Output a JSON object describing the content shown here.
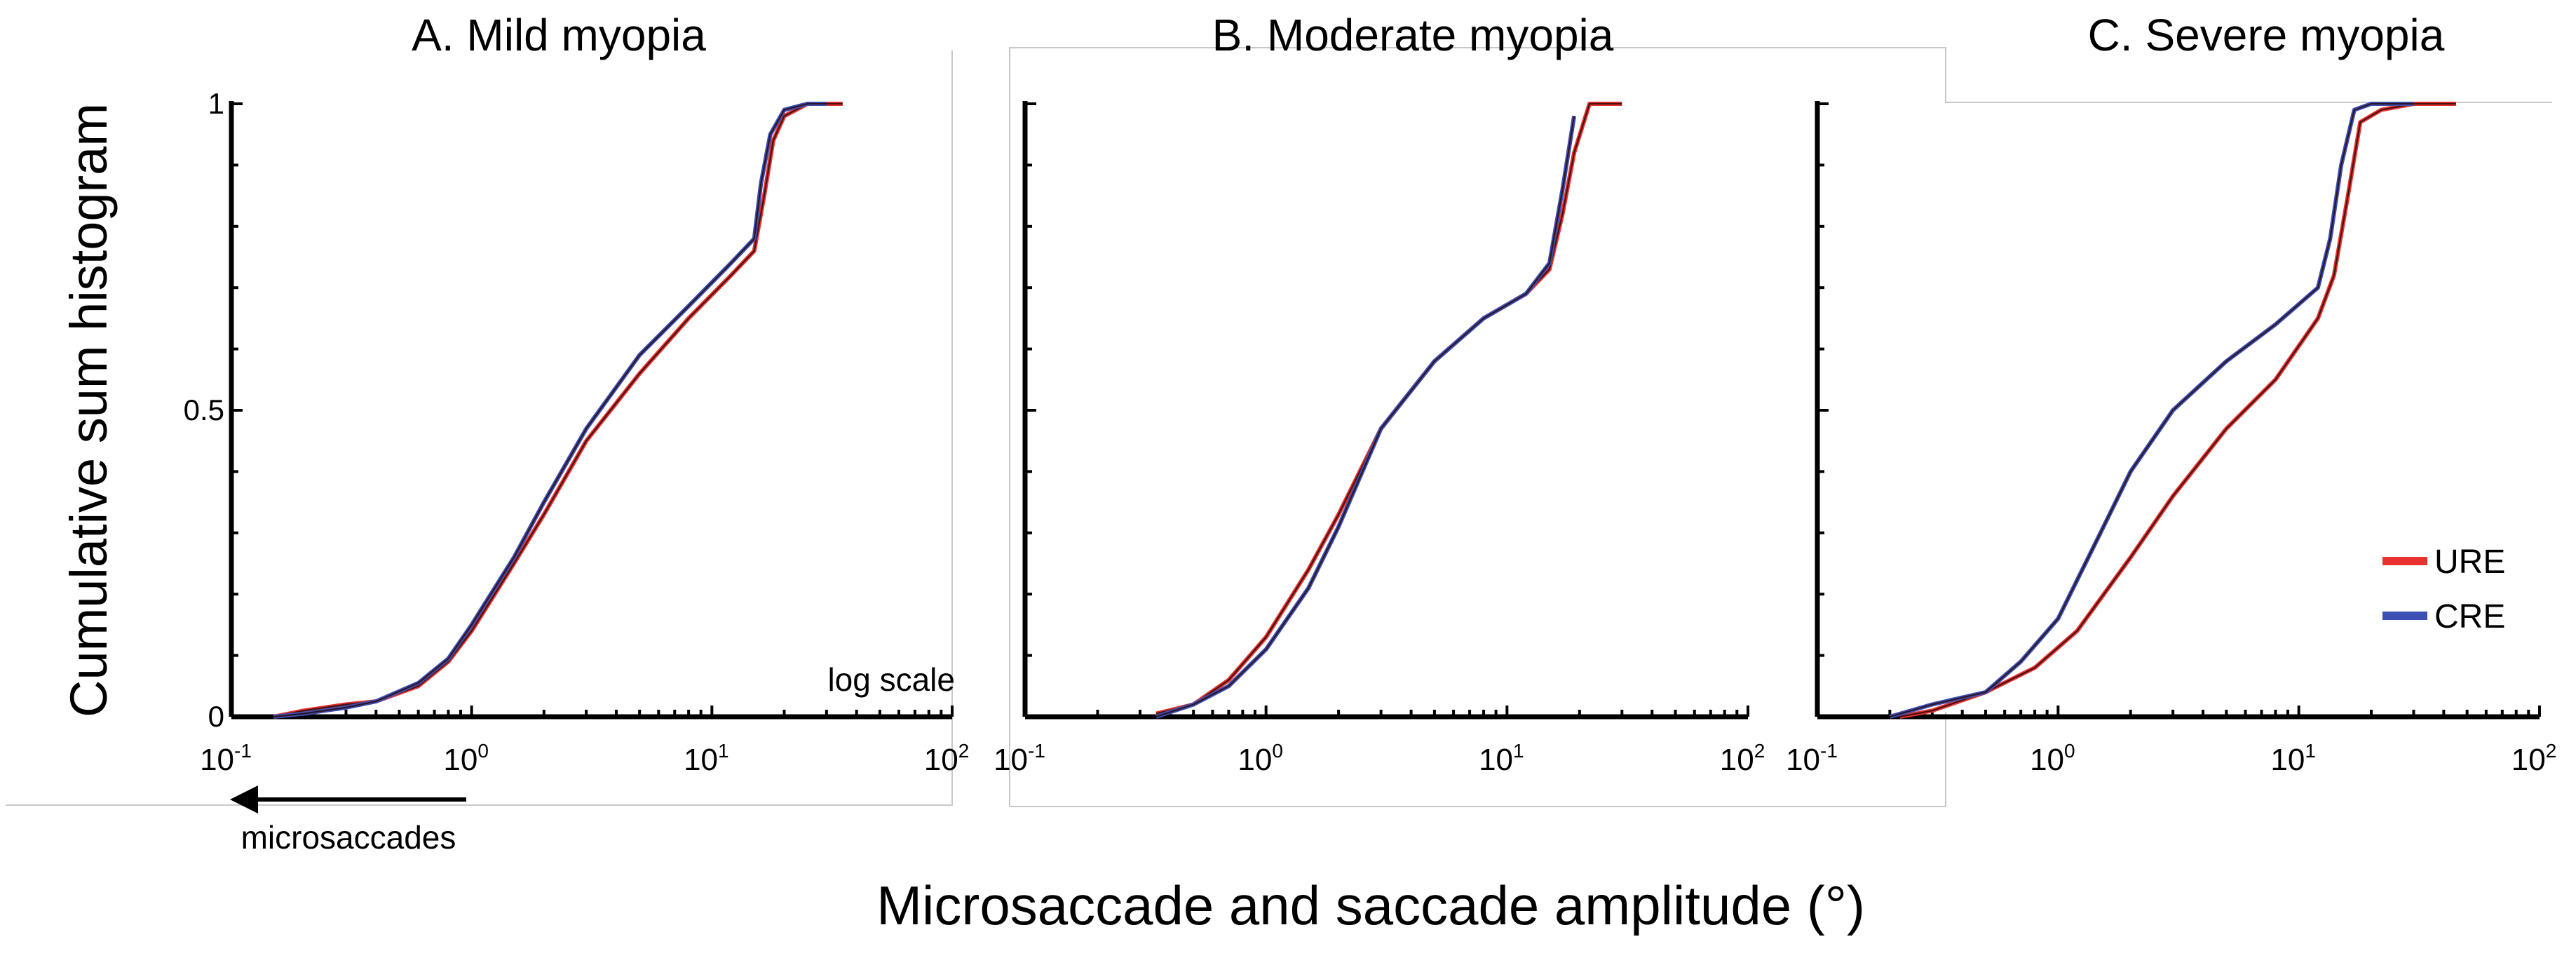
{
  "figure": {
    "ylabel": "Cumulative sum histogram",
    "xlabel": "Microsaccade and saccade amplitude (°)",
    "annotation_logscale": "log scale",
    "annotation_arrow": "microsaccades"
  },
  "legend": [
    {
      "label": "URE",
      "color": "#e8322f"
    },
    {
      "label": "CRE",
      "color": "#3c4fb4"
    }
  ],
  "colors": {
    "URE": "#e8322f",
    "CRE": "#3c4fb4",
    "overlay": "#2a0a0a",
    "axis": "#000000"
  },
  "chart_data": [
    {
      "type": "line",
      "title": "A. Mild myopia",
      "xlabel": "Microsaccade and saccade amplitude (°)",
      "ylabel": "Cumulative sum histogram",
      "xscale": "log",
      "xlim": [
        0.1,
        100
      ],
      "ylim": [
        0,
        1
      ],
      "xticks": [
        {
          "base": "10",
          "exp": "-1"
        },
        {
          "base": "10",
          "exp": "0"
        },
        {
          "base": "10",
          "exp": "1"
        },
        {
          "base": "10",
          "exp": "2"
        }
      ],
      "yticks": [
        "0",
        "0.5",
        "1"
      ],
      "series": [
        {
          "name": "URE",
          "x": [
            0.15,
            0.2,
            0.3,
            0.4,
            0.6,
            0.8,
            1.0,
            1.5,
            2.0,
            3.0,
            5.0,
            8.0,
            12.0,
            15.0,
            16.5,
            18.0,
            20.0,
            25.0,
            35.0
          ],
          "y": [
            0.0,
            0.01,
            0.02,
            0.025,
            0.05,
            0.09,
            0.14,
            0.25,
            0.33,
            0.45,
            0.56,
            0.65,
            0.72,
            0.76,
            0.85,
            0.94,
            0.98,
            1.0,
            1.0
          ]
        },
        {
          "name": "CRE",
          "x": [
            0.15,
            0.2,
            0.3,
            0.4,
            0.6,
            0.8,
            1.0,
            1.5,
            2.0,
            3.0,
            5.0,
            8.0,
            12.0,
            15.0,
            16.0,
            17.5,
            20.0,
            25.0,
            30.0
          ],
          "y": [
            0.0,
            0.005,
            0.015,
            0.025,
            0.055,
            0.095,
            0.15,
            0.26,
            0.35,
            0.47,
            0.59,
            0.67,
            0.74,
            0.78,
            0.87,
            0.95,
            0.99,
            1.0,
            1.0
          ]
        }
      ]
    },
    {
      "type": "line",
      "title": "B. Moderate myopia",
      "xlabel": "Microsaccade and saccade amplitude (°)",
      "ylabel": "Cumulative sum histogram",
      "xscale": "log",
      "xlim": [
        0.1,
        100
      ],
      "ylim": [
        0,
        1
      ],
      "xticks": [
        {
          "base": "10",
          "exp": "-1"
        },
        {
          "base": "10",
          "exp": "0"
        },
        {
          "base": "10",
          "exp": "1"
        },
        {
          "base": "10",
          "exp": "2"
        }
      ],
      "yticks": [],
      "series": [
        {
          "name": "URE",
          "x": [
            0.35,
            0.5,
            0.7,
            1.0,
            1.5,
            2.0,
            3.0,
            5.0,
            8.0,
            12.0,
            15.0,
            17.0,
            19.0,
            22.0,
            30.0
          ],
          "y": [
            0.005,
            0.02,
            0.06,
            0.13,
            0.24,
            0.33,
            0.47,
            0.58,
            0.65,
            0.69,
            0.73,
            0.82,
            0.92,
            1.0,
            1.0
          ]
        },
        {
          "name": "CRE",
          "x": [
            0.35,
            0.5,
            0.7,
            1.0,
            1.5,
            2.0,
            3.0,
            5.0,
            8.0,
            12.0,
            15.0,
            17.0,
            19.0
          ],
          "y": [
            0.0,
            0.02,
            0.05,
            0.11,
            0.21,
            0.31,
            0.47,
            0.58,
            0.65,
            0.69,
            0.74,
            0.86,
            0.98
          ]
        }
      ]
    },
    {
      "type": "line",
      "title": "C. Severe myopia",
      "xlabel": "Microsaccade and saccade amplitude (°)",
      "ylabel": "Cumulative sum histogram",
      "xscale": "log",
      "xlim": [
        0.1,
        100
      ],
      "ylim": [
        0,
        1
      ],
      "xticks": [
        {
          "base": "10",
          "exp": "-1"
        },
        {
          "base": "10",
          "exp": "0"
        },
        {
          "base": "10",
          "exp": "1"
        },
        {
          "base": "10",
          "exp": "2"
        }
      ],
      "yticks": [],
      "series": [
        {
          "name": "URE",
          "x": [
            0.22,
            0.3,
            0.5,
            0.8,
            1.2,
            2.0,
            3.0,
            5.0,
            8.0,
            12.0,
            14.0,
            16.0,
            18.0,
            22.0,
            30.0,
            45.0
          ],
          "y": [
            0.0,
            0.01,
            0.04,
            0.08,
            0.14,
            0.26,
            0.36,
            0.47,
            0.55,
            0.65,
            0.72,
            0.85,
            0.97,
            0.99,
            1.0,
            1.0
          ]
        },
        {
          "name": "CRE",
          "x": [
            0.2,
            0.3,
            0.5,
            0.7,
            1.0,
            1.5,
            2.0,
            3.0,
            5.0,
            8.0,
            12.0,
            13.5,
            15.0,
            17.0,
            20.0,
            30.0
          ],
          "y": [
            0.0,
            0.02,
            0.04,
            0.09,
            0.16,
            0.3,
            0.4,
            0.5,
            0.58,
            0.64,
            0.7,
            0.78,
            0.9,
            0.99,
            1.0,
            1.0
          ]
        }
      ]
    }
  ]
}
